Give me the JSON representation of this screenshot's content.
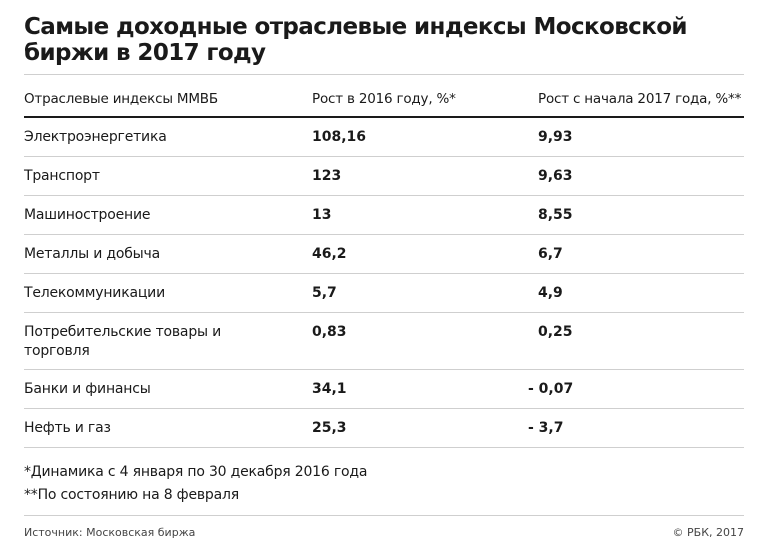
{
  "chart_data": {
    "type": "table",
    "title": "Самые доходные отраслевые индексы Московской биржи в 2017 году",
    "columns": [
      "Отраслевые индексы ММВБ",
      "Рост в 2016 году, %*",
      "Рост с начала 2017 года, %**"
    ],
    "rows": [
      {
        "name": "Электроэнергетика",
        "growth_2016": "108,16",
        "growth_2017": "9,93"
      },
      {
        "name": "Транспорт",
        "growth_2016": "123",
        "growth_2017": "9,63"
      },
      {
        "name": "Машиностроение",
        "growth_2016": "13",
        "growth_2017": "8,55"
      },
      {
        "name": "Металлы и добыча",
        "growth_2016": "46,2",
        "growth_2017": "6,7"
      },
      {
        "name": "Телекоммуникации",
        "growth_2016": "5,7",
        "growth_2017": "4,9"
      },
      {
        "name": "Потребительские товары и торговля",
        "growth_2016": "0,83",
        "growth_2017": "0,25"
      },
      {
        "name": "Банки и финансы",
        "growth_2016": "34,1",
        "growth_2017": "- 0,07"
      },
      {
        "name": "Нефть и газ",
        "growth_2016": "25,3",
        "growth_2017": "- 3,7"
      }
    ]
  },
  "notes": [
    "*Динамика с 4 января по 30 декабря 2016 года",
    "**По состоянию на 8 февраля"
  ],
  "footer": {
    "source": "Источник: Московская биржа",
    "copyright": "© РБК, 2017"
  }
}
